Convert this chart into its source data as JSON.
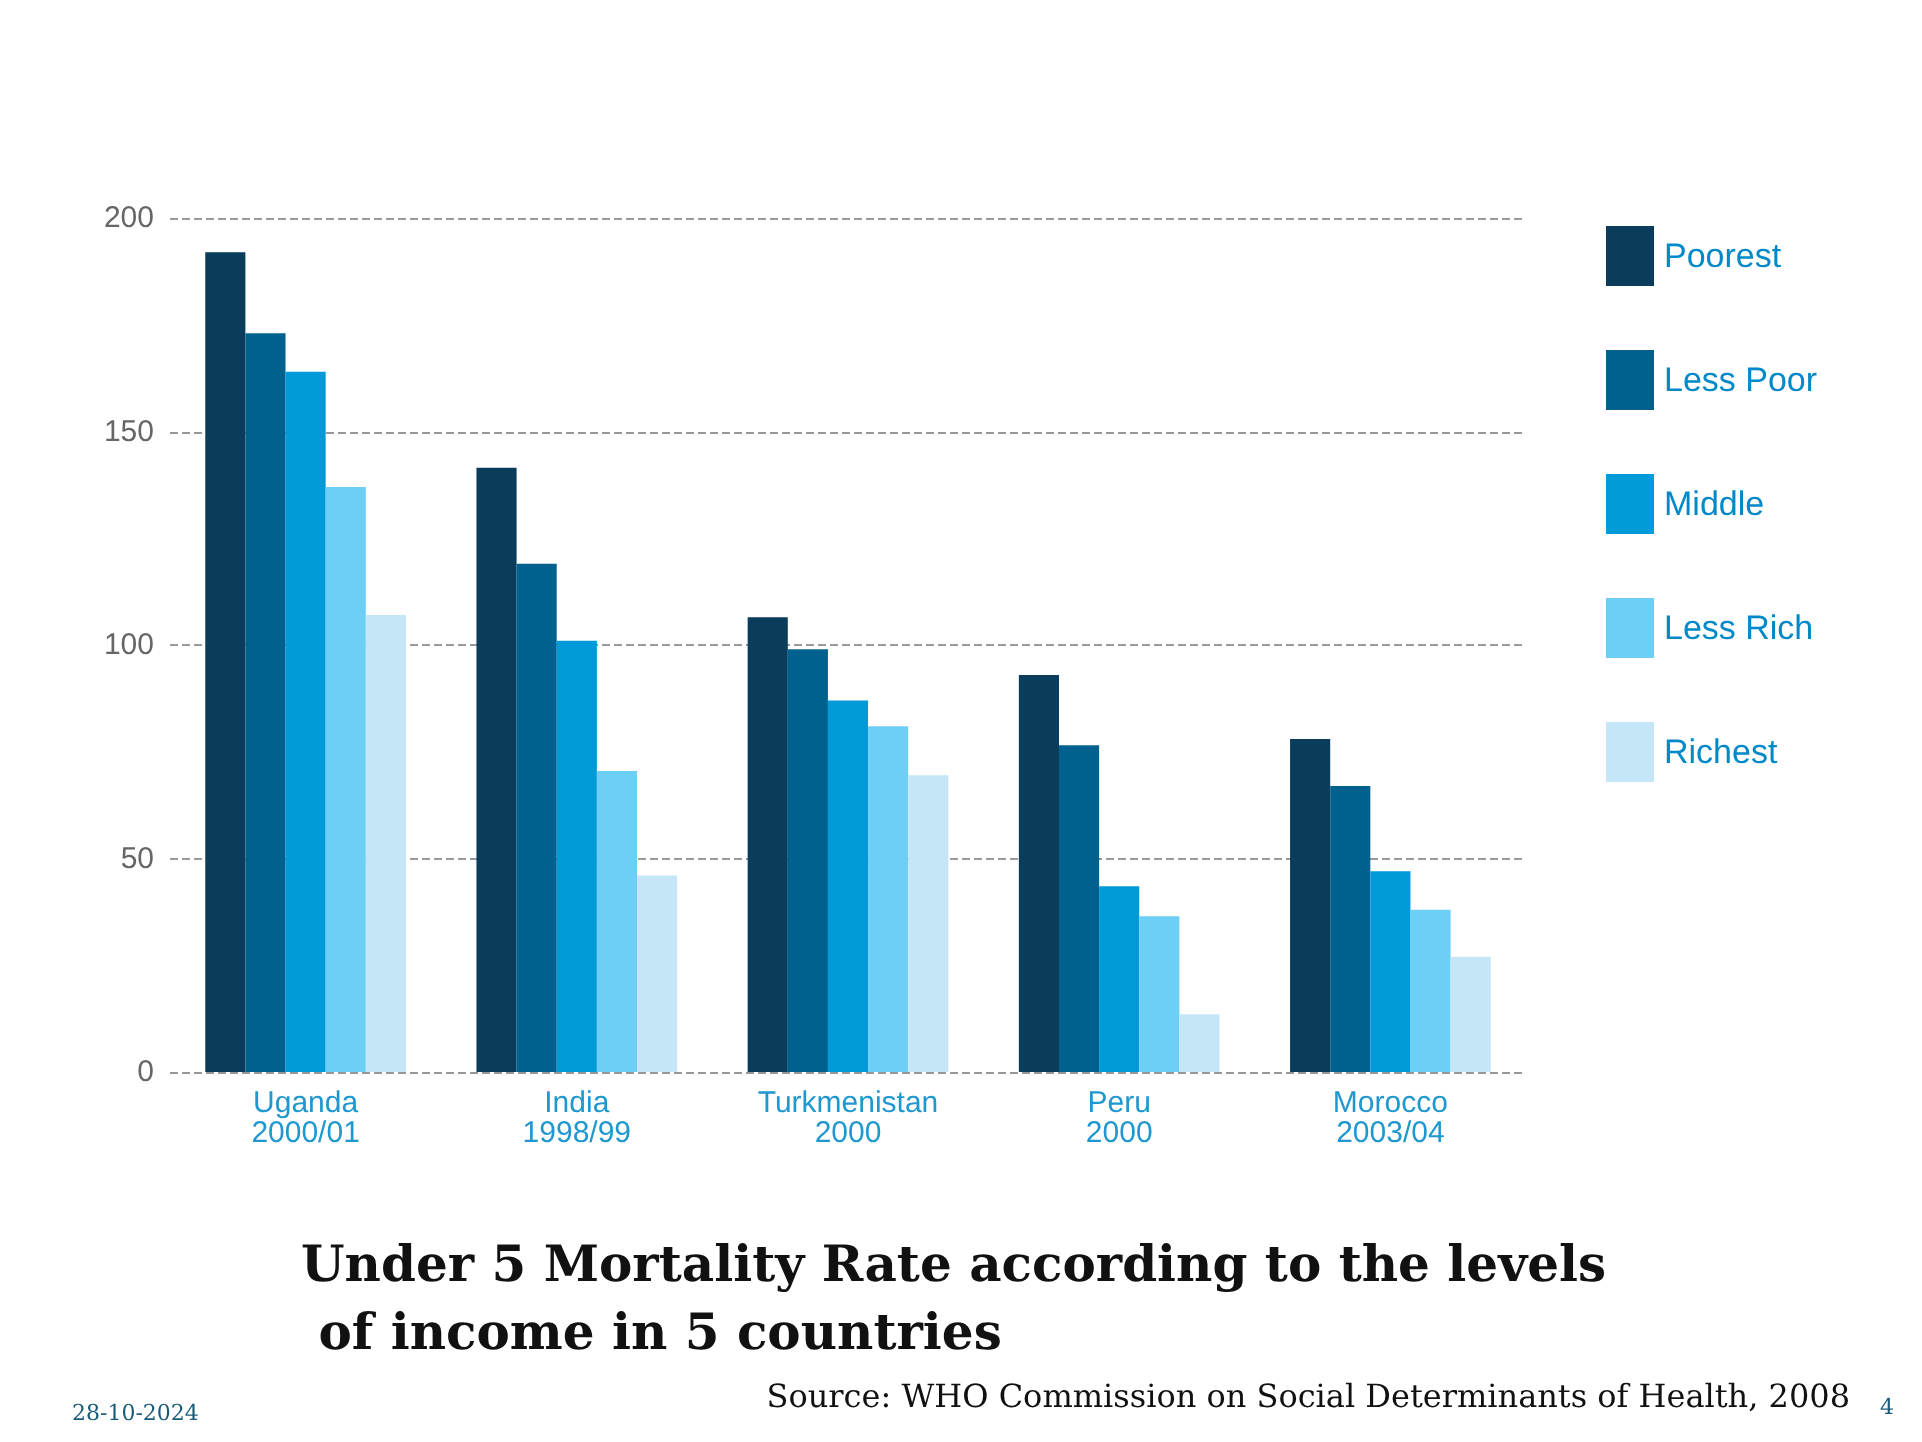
{
  "chart_data": {
    "type": "bar",
    "title": "Under 5 Mortality Rate according to the levels of income in 5 countries",
    "categories": [
      "Uganda\n2000/01",
      "India\n1998/99",
      "Turkmenistan\n2000",
      "Peru\n2000",
      "Morocco\n2003/04"
    ],
    "series": [
      {
        "name": "Poorest",
        "color": "#0a3d5c",
        "values": [
          192,
          141.5,
          106.5,
          93,
          78
        ]
      },
      {
        "name": "Less Poor",
        "color": "#00618f",
        "values": [
          173,
          119,
          99,
          76.5,
          67
        ]
      },
      {
        "name": "Middle",
        "color": "#009ad8",
        "values": [
          164,
          101,
          87,
          43.5,
          47
        ]
      },
      {
        "name": "Less Rich",
        "color": "#6dcff6",
        "values": [
          137,
          70.5,
          81,
          36.5,
          38
        ]
      },
      {
        "name": "Richest",
        "color": "#c5e6f7",
        "values": [
          107,
          46,
          69.5,
          13.5,
          27
        ]
      }
    ],
    "ylim": [
      0,
      200
    ],
    "yticks": [
      0,
      50,
      100,
      150,
      200
    ],
    "grid": "y",
    "legend": "right",
    "annotations": [
      "Source: WHO Commission on Social Determinants of Health, 2008",
      "28-10-2024",
      "4"
    ]
  }
}
